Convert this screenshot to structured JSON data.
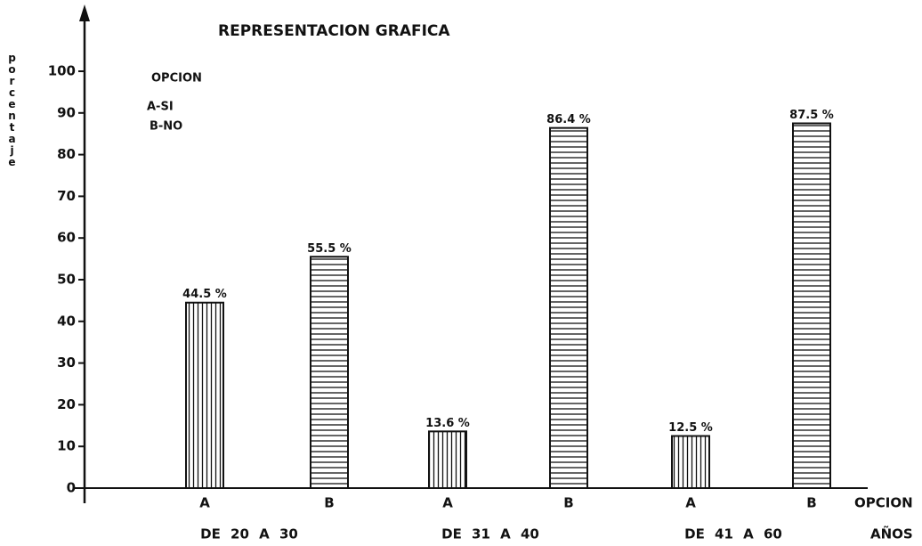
{
  "chart_data": {
    "type": "bar",
    "title": "REPRESENTACION GRAFICA",
    "ylabel": "porcentaje",
    "legend_title": "OPCION",
    "legend": [
      "A-SI",
      "B-NO"
    ],
    "categories": [
      "A",
      "B",
      "A",
      "B",
      "A",
      "B"
    ],
    "groups": [
      "DE 20 A 30",
      "DE 31 A 40",
      "DE 41 A 60"
    ],
    "xlabel": "OPCION",
    "group_label": "AÑOS",
    "values": [
      44.5,
      55.5,
      13.6,
      86.4,
      12.5,
      87.5
    ],
    "value_labels": [
      "44.5 %",
      "55.5 %",
      "13.6 %",
      "86.4 %",
      "12.5 %",
      "87.5 %"
    ],
    "color": "#111111",
    "ylim": [
      0,
      100
    ],
    "yticks": [
      0,
      10,
      20,
      30,
      40,
      50,
      60,
      70,
      80,
      90,
      100
    ]
  }
}
